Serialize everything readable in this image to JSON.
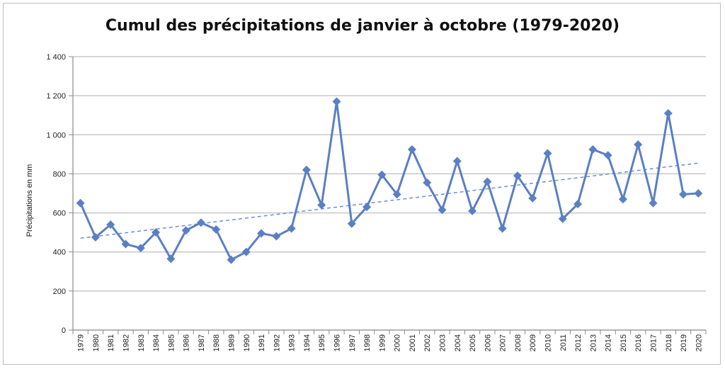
{
  "chart_data": {
    "type": "line",
    "title": "Cumul des précipitations de janvier à octobre (1979-2020)",
    "xlabel": "",
    "ylabel": "Précipitations en mm",
    "ylim": [
      0,
      1400
    ],
    "yticks": [
      0,
      200,
      400,
      600,
      800,
      1000,
      1200,
      1400
    ],
    "ytick_labels": [
      "0",
      "200",
      "400",
      "600",
      "800",
      "1 000",
      "1 200",
      "1 400"
    ],
    "grid": true,
    "legend": "none",
    "colors": {
      "series": "#5b7fc4",
      "trend": "#6e8fd0",
      "grid": "#c8c8c8"
    },
    "categories": [
      "1979",
      "1980",
      "1981",
      "1982",
      "1983",
      "1984",
      "1985",
      "1986",
      "1987",
      "1988",
      "1989",
      "1990",
      "1991",
      "1992",
      "1993",
      "1994",
      "1995",
      "1996",
      "1997",
      "1998",
      "1999",
      "2000",
      "2001",
      "2002",
      "2003",
      "2004",
      "2005",
      "2006",
      "2007",
      "2008",
      "2009",
      "2010",
      "2011",
      "2012",
      "2013",
      "2014",
      "2015",
      "2016",
      "2017",
      "2018",
      "2019",
      "2020"
    ],
    "series": [
      {
        "values": [
          650,
          475,
          540,
          440,
          420,
          500,
          365,
          510,
          550,
          515,
          360,
          400,
          495,
          480,
          520,
          820,
          640,
          1170,
          545,
          630,
          795,
          695,
          925,
          755,
          615,
          865,
          610,
          760,
          520,
          790,
          675,
          905,
          570,
          645,
          925,
          895,
          670,
          950,
          650,
          1110,
          695,
          700
        ]
      }
    ],
    "trendline": {
      "style": "dashed",
      "start": 470,
      "end": 855
    }
  }
}
